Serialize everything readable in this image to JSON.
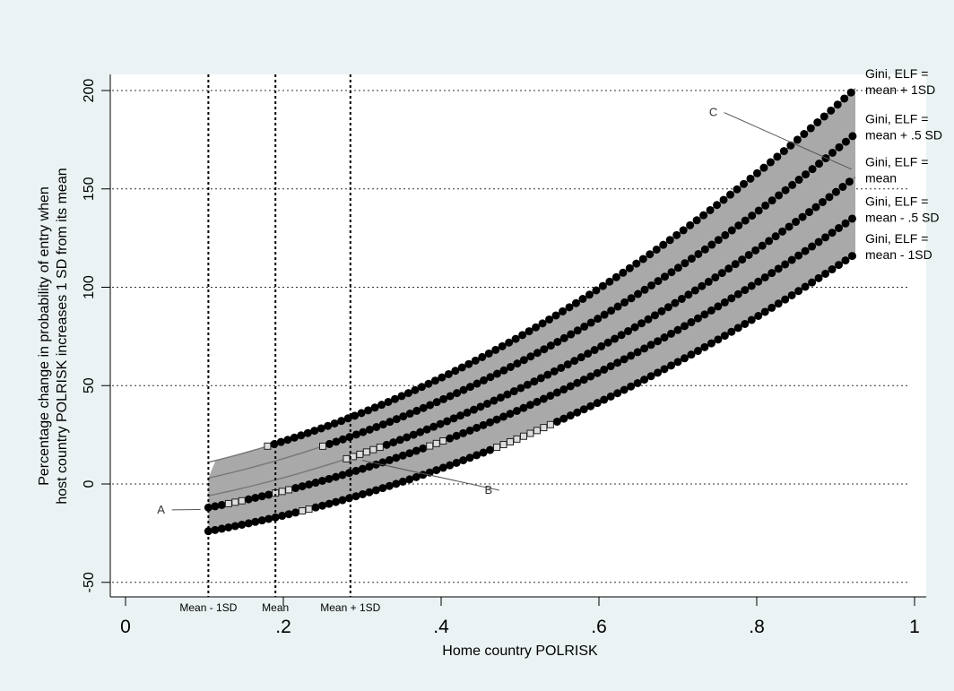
{
  "chart_data": {
    "type": "line",
    "xlabel": "Home country POLRISK",
    "ylabel_lines": [
      "Percentage change in probability of entry when",
      "host country POLRISK increases 1 SD from its mean"
    ],
    "xlim": [
      0,
      1
    ],
    "ylim": [
      -55,
      205
    ],
    "x_ticks": [
      {
        "value": 0,
        "label": "0"
      },
      {
        "value": 0.2,
        "label": ".2"
      },
      {
        "value": 0.4,
        "label": ".4"
      },
      {
        "value": 0.6,
        "label": ".6"
      },
      {
        "value": 0.8,
        "label": ".8"
      },
      {
        "value": 1,
        "label": "1"
      }
    ],
    "y_ticks": [
      {
        "value": -50,
        "label": "-50"
      },
      {
        "value": 0,
        "label": "0"
      },
      {
        "value": 50,
        "label": "50"
      },
      {
        "value": 100,
        "label": "100"
      },
      {
        "value": 150,
        "label": "150"
      },
      {
        "value": 200,
        "label": "200"
      }
    ],
    "grid": "horizontal dotted",
    "ref_lines": [
      {
        "x": 0.105,
        "label": "Mean - 1SD"
      },
      {
        "x": 0.19,
        "label": "Mean"
      },
      {
        "x": 0.285,
        "label": "Mean + 1SD"
      }
    ],
    "x_start": 0.105,
    "x_end": 0.925,
    "shaded_band": {
      "color": "#a9a9a9"
    },
    "series": [
      {
        "name": "Gini, ELF = mean + 1SD",
        "label_lines": [
          "Gini, ELF =",
          "mean + 1SD"
        ],
        "y_start": 11,
        "y_end": 201,
        "x_from": 0.18,
        "open_until": 0.185
      },
      {
        "name": "Gini, ELF = mean + .5 SD",
        "label_lines": [
          "Gini, ELF =",
          "mean + .5 SD"
        ],
        "y_start": 3,
        "y_end": 178,
        "x_from": 0.25,
        "open_until": 0.255
      },
      {
        "name": "Gini, ELF = mean",
        "label_lines": [
          "Gini, ELF =",
          "mean"
        ],
        "y_start": -6,
        "y_end": 156,
        "x_from": 0.28,
        "open_until": 0.33
      },
      {
        "name": "Gini, ELF = mean - .5 SD",
        "label_lines": [
          "Gini, ELF =",
          "mean - .5 SD"
        ],
        "y_start": -12,
        "y_end": 136,
        "x_from": 0.105,
        "open_from": 0.13,
        "open_until": 0.21,
        "open_ranges": [
          [
            0.13,
            0.15
          ],
          [
            0.19,
            0.21
          ],
          [
            0.38,
            0.41
          ]
        ]
      },
      {
        "name": "Gini, ELF = mean - 1SD",
        "label_lines": [
          "Gini, ELF =",
          "mean - 1SD"
        ],
        "y_start": -24,
        "y_end": 117,
        "x_from": 0.105,
        "open_ranges": [
          [
            0.22,
            0.24
          ],
          [
            0.47,
            0.54
          ]
        ]
      }
    ],
    "annotations": [
      {
        "text": "A",
        "x": 0.045,
        "y": -15,
        "tx": 0.095,
        "ty": -13
      },
      {
        "text": "B",
        "x": 0.46,
        "y": -5,
        "tx": 0.3,
        "ty": 12
      },
      {
        "text": "C",
        "x": 0.745,
        "y": 187,
        "tx": 0.92,
        "ty": 160
      }
    ]
  }
}
